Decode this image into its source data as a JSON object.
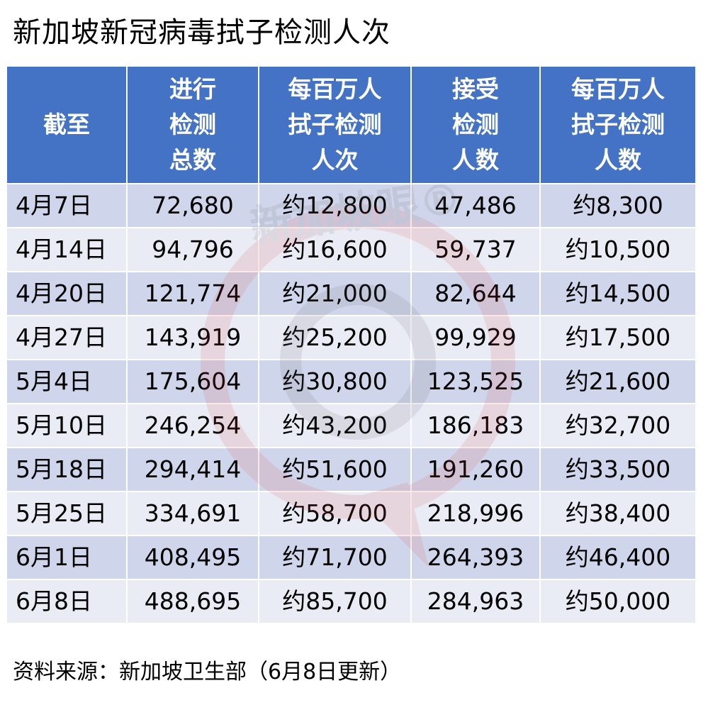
{
  "title": "新加坡新冠病毒拭子检测人次",
  "headers": [
    [
      "截至"
    ],
    [
      "进行",
      "检测",
      "总数"
    ],
    [
      "每百万人",
      "拭子检测",
      "人次"
    ],
    [
      "接受",
      "检测",
      "人数"
    ],
    [
      "每百万人",
      "拭子检测",
      "人数"
    ]
  ],
  "rows": [
    [
      "4月7日",
      "72,680",
      "约12,800",
      "47,486",
      "约8,300"
    ],
    [
      "4月14日",
      "94,796",
      "约16,600",
      "59,737",
      "约10,500"
    ],
    [
      "4月20日",
      "121,774",
      "约21,000",
      "82,644",
      "约14,500"
    ],
    [
      "4月27日",
      "143,919",
      "约25,200",
      "99,929",
      "约17,500"
    ],
    [
      "5月4日",
      "175,604",
      "约30,800",
      "123,525",
      "约21,600"
    ],
    [
      "5月10日",
      "246,254",
      "约43,200",
      "186,183",
      "约32,700"
    ],
    [
      "5月18日",
      "294,414",
      "约51,600",
      "191,260",
      "约33,500"
    ],
    [
      "5月25日",
      "334,691",
      "约58,700",
      "218,996",
      "约38,400"
    ],
    [
      "6月1日",
      "408,495",
      "约71,700",
      "264,393",
      "约46,400"
    ],
    [
      "6月8日",
      "488,695",
      "约85,700",
      "284,963",
      "约50,000"
    ]
  ],
  "watermark_text": "新加坡眼®",
  "source": "资料来源：新加坡卫生部（6月8日更新）",
  "colors": {
    "header_bg": "#4472c4",
    "row_dark": "#cfd5ea",
    "row_light": "#e9ebf5"
  }
}
